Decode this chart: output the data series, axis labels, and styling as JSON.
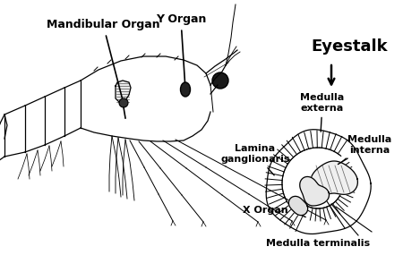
{
  "labels": {
    "mandibular_organ": "Mandibular Organ",
    "y_organ": "Y Organ",
    "eyestalk": "Eyestalk",
    "medulla_externa": "Medulla\nexterna",
    "medulla_interna": "Medulla\ninterna",
    "lamina_ganglionaris": "Lamina\nganglionaris",
    "x_organ": "X Organ",
    "medulla_terminalis": "Medulla terminalis"
  },
  "bg_color": "#ffffff",
  "line_color": "#000000",
  "text_color": "#000000",
  "figsize": [
    4.5,
    2.85
  ],
  "dpi": 100
}
